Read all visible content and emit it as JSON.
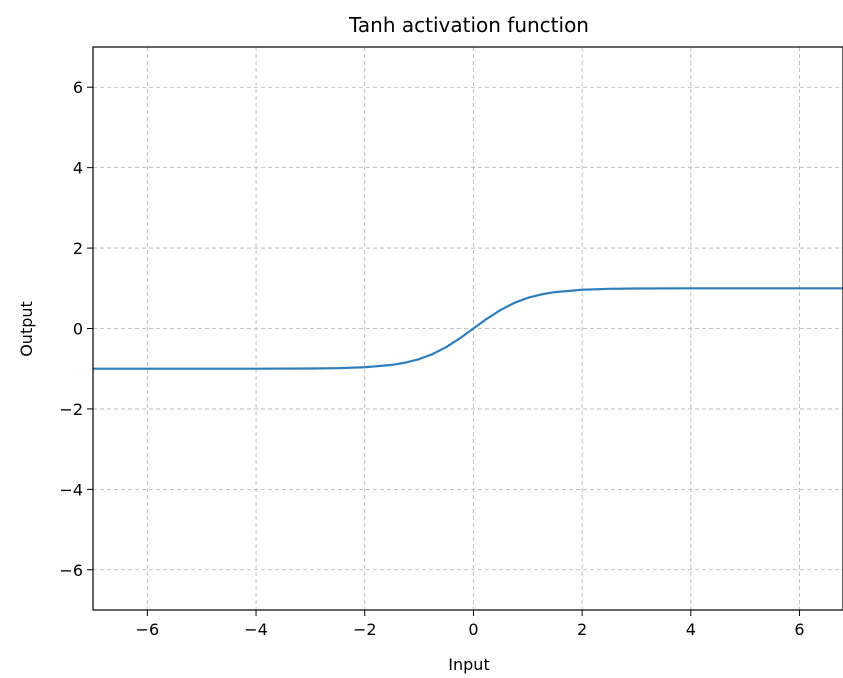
{
  "chart_data": {
    "type": "line",
    "title": "Tanh activation function",
    "xlabel": "Input",
    "ylabel": "Output",
    "xlim": [
      -7,
      6.8
    ],
    "ylim": [
      -7,
      7
    ],
    "xticks": [
      -6,
      -4,
      -2,
      0,
      2,
      4,
      6
    ],
    "yticks": [
      -6,
      -4,
      -2,
      0,
      2,
      4,
      6
    ],
    "grid": true,
    "series": [
      {
        "color": "#2e7ebd",
        "x": [
          -7.0,
          -6.0,
          -5.0,
          -4.0,
          -3.0,
          -2.5,
          -2.0,
          -1.5,
          -1.25,
          -1.0,
          -0.75,
          -0.5,
          -0.25,
          0.0,
          0.25,
          0.5,
          0.75,
          1.0,
          1.25,
          1.5,
          2.0,
          2.5,
          3.0,
          4.0,
          5.0,
          6.0,
          6.8
        ],
        "y": [
          -1.0,
          -1.0,
          -0.9999,
          -0.9993,
          -0.9951,
          -0.9866,
          -0.964,
          -0.9051,
          -0.8483,
          -0.7616,
          -0.6351,
          -0.4621,
          -0.2449,
          0.0,
          0.2449,
          0.4621,
          0.6351,
          0.7616,
          0.8483,
          0.9051,
          0.964,
          0.9866,
          0.9951,
          0.9993,
          0.9999,
          1.0,
          1.0
        ]
      }
    ]
  }
}
